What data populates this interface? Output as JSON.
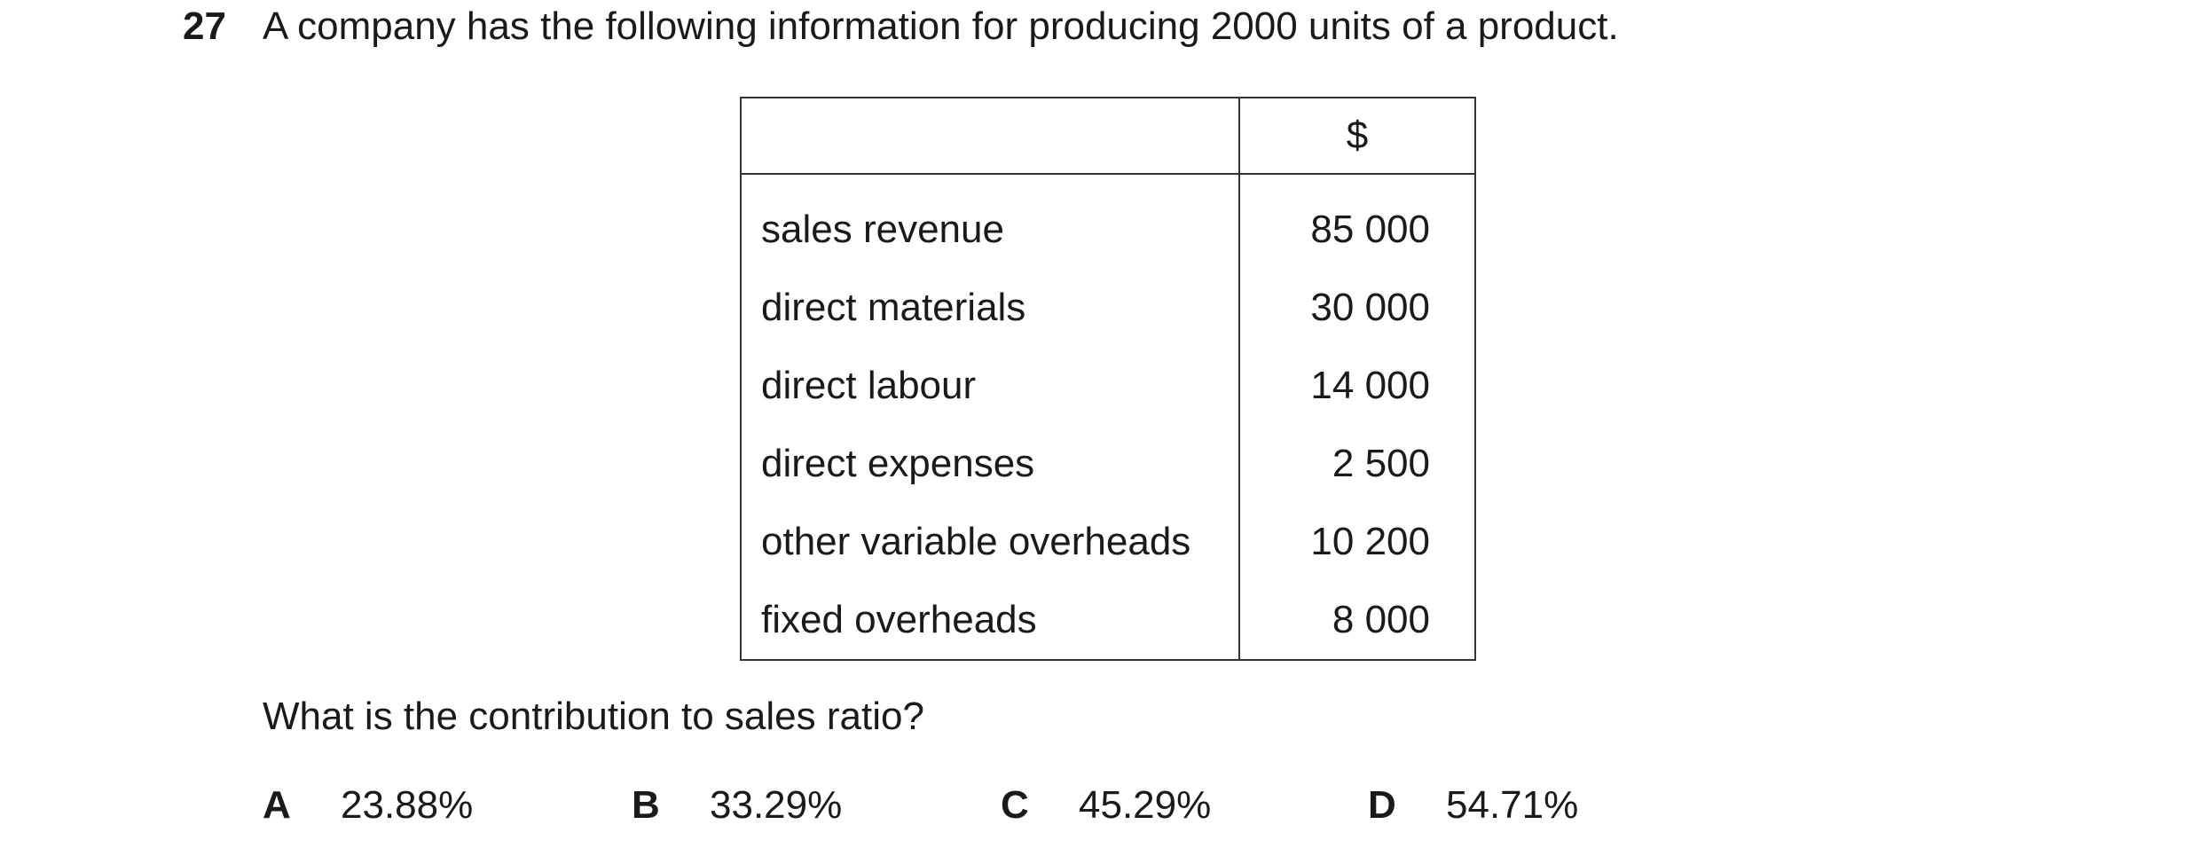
{
  "question": {
    "number": "27",
    "stem": "A company has the following information for producing 2000 units of a product.",
    "prompt": "What is the contribution to sales ratio?"
  },
  "table": {
    "header": {
      "label": "",
      "value": "$"
    },
    "rows": [
      {
        "label": "sales revenue",
        "value": "85 000"
      },
      {
        "label": "direct materials",
        "value": "30 000"
      },
      {
        "label": "direct labour",
        "value": "14 000"
      },
      {
        "label": "direct expenses",
        "value": "2 500"
      },
      {
        "label": "other variable overheads",
        "value": "10 200"
      },
      {
        "label": "fixed overheads",
        "value": "8 000"
      }
    ]
  },
  "options": [
    {
      "letter": "A",
      "text": "23.88%"
    },
    {
      "letter": "B",
      "text": "33.29%"
    },
    {
      "letter": "C",
      "text": "45.29%"
    },
    {
      "letter": "D",
      "text": "54.71%"
    }
  ]
}
